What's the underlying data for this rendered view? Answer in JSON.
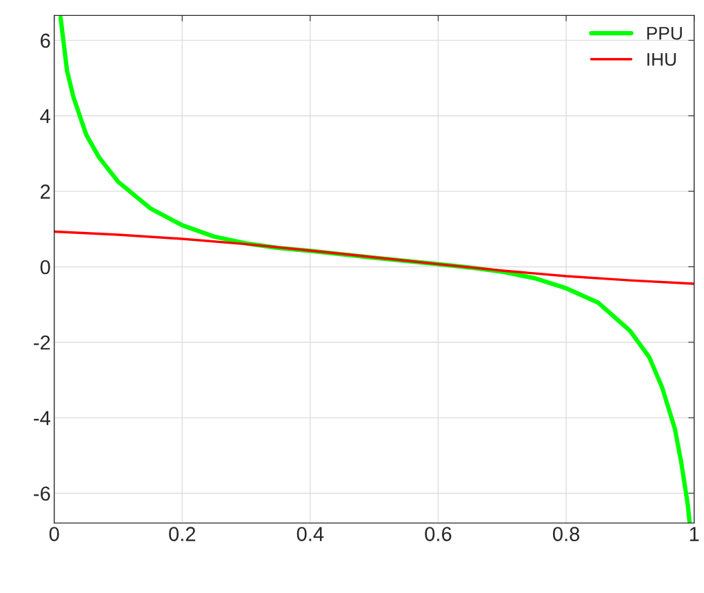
{
  "chart_data": {
    "type": "line",
    "xlim": [
      0,
      1
    ],
    "ylim": [
      -6.79,
      6.66
    ],
    "xticks": [
      0,
      0.2,
      0.4,
      0.6,
      0.8,
      1
    ],
    "yticks": [
      -6,
      -4,
      -2,
      0,
      2,
      4,
      6
    ],
    "grid": true,
    "legend": "top right",
    "line_style": "solid",
    "marker": "none",
    "series": [
      {
        "name": "PPU",
        "color": "#00ff00",
        "x": [
          0.01,
          0.02,
          0.03,
          0.05,
          0.07,
          0.1,
          0.15,
          0.2,
          0.25,
          0.3,
          0.35,
          0.4,
          0.5,
          0.6,
          0.65,
          0.7,
          0.75,
          0.8,
          0.85,
          0.9,
          0.93,
          0.95,
          0.97,
          0.98,
          0.99,
          0.993
        ],
        "values": [
          6.6,
          5.2,
          4.5,
          3.5,
          2.9,
          2.25,
          1.55,
          1.1,
          0.8,
          0.62,
          0.5,
          0.42,
          0.24,
          0.07,
          -0.02,
          -0.13,
          -0.3,
          -0.57,
          -0.95,
          -1.7,
          -2.4,
          -3.2,
          -4.3,
          -5.2,
          -6.3,
          -6.79
        ]
      },
      {
        "name": "IHU",
        "color": "#ff0000",
        "x": [
          0,
          0.1,
          0.2,
          0.3,
          0.4,
          0.5,
          0.6,
          0.7,
          0.8,
          0.9,
          1
        ],
        "values": [
          0.93,
          0.85,
          0.74,
          0.6,
          0.43,
          0.25,
          0.07,
          -0.1,
          -0.25,
          -0.36,
          -0.45
        ]
      }
    ]
  }
}
